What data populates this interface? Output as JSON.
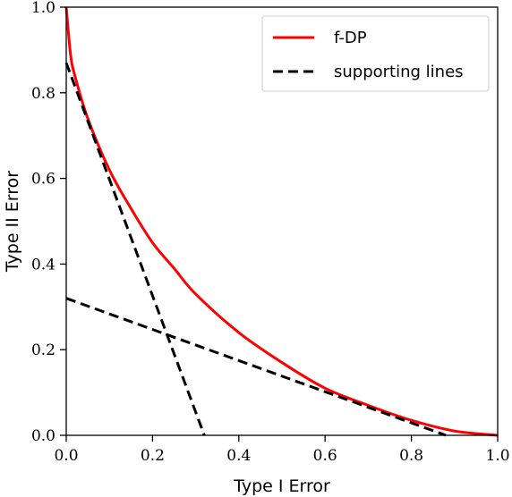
{
  "chart_data": {
    "type": "line",
    "xlabel": "Type I Error",
    "ylabel": "Type II Error",
    "xlim": [
      0.0,
      1.0
    ],
    "ylim": [
      0.0,
      1.0
    ],
    "x_ticks": [
      "0.0",
      "0.2",
      "0.4",
      "0.6",
      "0.8",
      "1.0"
    ],
    "y_ticks": [
      "0.0",
      "0.2",
      "0.4",
      "0.6",
      "0.8",
      "1.0"
    ],
    "grid": false,
    "legend_position": "top-right",
    "series": [
      {
        "name": "f-DP",
        "style": "solid",
        "color": "#ff0000",
        "x": [
          0.0,
          0.01,
          0.02,
          0.05,
          0.1,
          0.15,
          0.2,
          0.25,
          0.3,
          0.4,
          0.5,
          0.6,
          0.7,
          0.8,
          0.9,
          1.0
        ],
        "y": [
          1.0,
          0.89,
          0.84,
          0.74,
          0.62,
          0.53,
          0.45,
          0.39,
          0.33,
          0.24,
          0.17,
          0.11,
          0.07,
          0.035,
          0.01,
          0.0
        ]
      },
      {
        "name": "supporting lines",
        "style": "dashed",
        "color": "#000000",
        "x": [
          0.0,
          0.32
        ],
        "y": [
          0.87,
          0.0
        ]
      },
      {
        "name": "supporting lines",
        "style": "dashed",
        "color": "#000000",
        "x": [
          0.0,
          0.88
        ],
        "y": [
          0.32,
          0.0
        ]
      }
    ],
    "legend": [
      {
        "label": "f-DP",
        "style": "solid",
        "color": "#ff0000"
      },
      {
        "label": "supporting lines",
        "style": "dashed",
        "color": "#000000"
      }
    ]
  }
}
